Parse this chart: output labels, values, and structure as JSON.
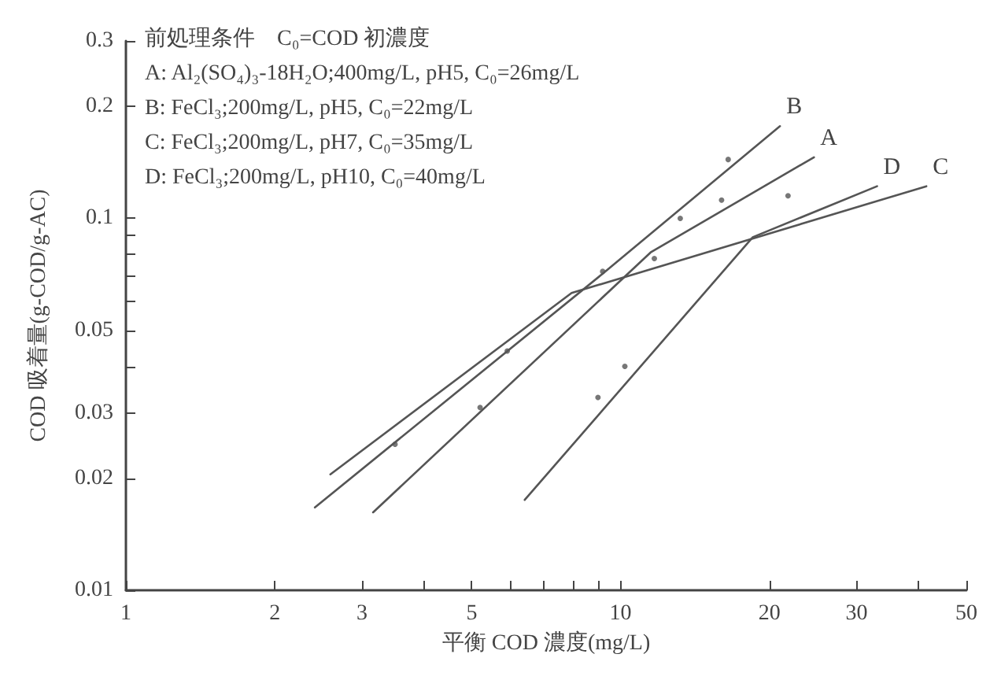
{
  "chart_data": {
    "type": "line",
    "xlabel": "平衡 COD 濃度(mg/L)",
    "ylabel": "COD 吸着量(g-COD/g-AC)",
    "annotations": [
      "前処理条件　C₀=COD 初濃度",
      "A: Al₂(SO₄)₃-18H₂O;400mg/L, pH5, C₀=26mg/L",
      "B: FeCl₃;200mg/L, pH5, C₀=22mg/L",
      "C: FeCl₃;200mg/L, pH7, C₀=35mg/L",
      "D: FeCl₃;200mg/L, pH10, C₀=40mg/L"
    ],
    "log": "xy",
    "grid": false,
    "marker": "none",
    "xlim": [
      1,
      50
    ],
    "xticks": [
      1,
      2,
      3,
      {
        "value": 4,
        "label": null
      },
      5,
      {
        "value": 6,
        "label": null
      },
      {
        "value": 7,
        "label": null
      },
      {
        "value": 8,
        "label": null
      },
      {
        "value": 9,
        "label": null
      },
      10,
      20,
      30,
      {
        "value": 40,
        "label": null
      },
      50
    ],
    "ylim": [
      0.01,
      0.3
    ],
    "yticks": [
      0.01,
      0.02,
      0.03,
      {
        "value": 0.04,
        "label": null
      },
      0.05,
      {
        "value": 0.06,
        "label": null
      },
      {
        "value": 0.07,
        "label": null
      },
      {
        "value": 0.08,
        "label": null
      },
      {
        "value": 0.09,
        "label": null
      },
      0.1,
      0.2,
      0.3
    ],
    "series": [
      {
        "name": "A",
        "color": "#555555",
        "x": [
          3.16,
          11.5,
          24.6
        ],
        "values": [
          0.0162,
          0.081,
          0.146
        ]
      },
      {
        "name": "B",
        "color": "#555555",
        "x": [
          2.41,
          9.2,
          21
        ],
        "values": [
          0.0167,
          0.071,
          0.177
        ]
      },
      {
        "name": "C",
        "color": "#555555",
        "x": [
          2.59,
          7.96,
          41.5
        ],
        "values": [
          0.0205,
          0.063,
          0.122
        ]
      },
      {
        "name": "D",
        "color": "#555555",
        "x": [
          6.4,
          18.5,
          33
        ],
        "values": [
          0.0175,
          0.089,
          0.122
        ]
      },
      {
        "type": "scatter",
        "marker": "circle",
        "color": "#555555",
        "x": [
          16.5,
          13.2,
          21.8,
          16,
          11.7,
          9.2,
          10.2,
          5.9,
          5.2,
          3.5,
          9
        ],
        "values": [
          0.144,
          0.1,
          0.115,
          0.112,
          0.078,
          0.072,
          0.04,
          0.044,
          0.031,
          0.0247,
          0.033
        ]
      }
    ]
  }
}
